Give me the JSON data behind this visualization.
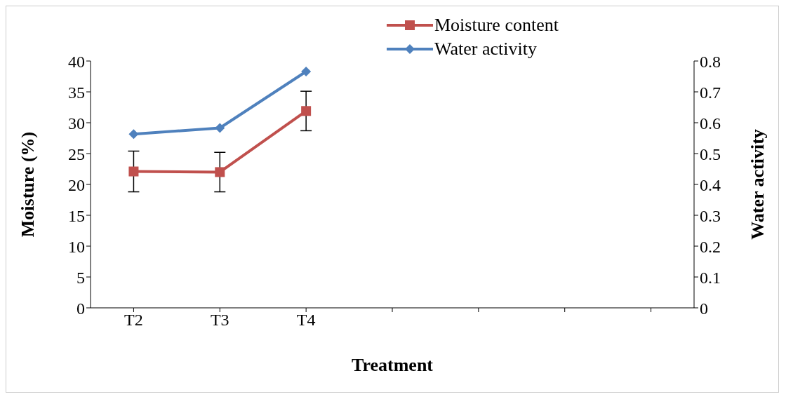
{
  "chart_data": {
    "type": "line",
    "xlabel": "Treatment",
    "ylabel": "Moisture (%)",
    "y2label": "Water activity",
    "categories": [
      "T2",
      "T3",
      "T4",
      null,
      null,
      null,
      null
    ],
    "series": [
      {
        "name": "Moisture content",
        "color": "#c0504d",
        "marker": "square",
        "values": [
          22.1,
          22.0,
          31.9,
          null,
          null,
          null,
          null
        ],
        "errors": [
          3.3,
          3.2,
          3.2,
          null,
          null,
          null,
          null
        ]
      },
      {
        "name": "Water activity",
        "color": "#4f81bd",
        "marker": "diamond",
        "axis": "y2",
        "values": [
          0.563,
          0.583,
          0.766,
          null,
          null,
          null,
          null
        ]
      }
    ],
    "ylim": [
      0,
      40
    ],
    "yticks": [
      0,
      5,
      10,
      15,
      20,
      25,
      30,
      35,
      40
    ],
    "y2lim": [
      0,
      0.8
    ],
    "y2ticks": [
      0,
      0.1,
      0.2,
      0.3,
      0.4,
      0.5,
      0.6,
      0.7,
      0.8
    ],
    "legend": "top"
  }
}
